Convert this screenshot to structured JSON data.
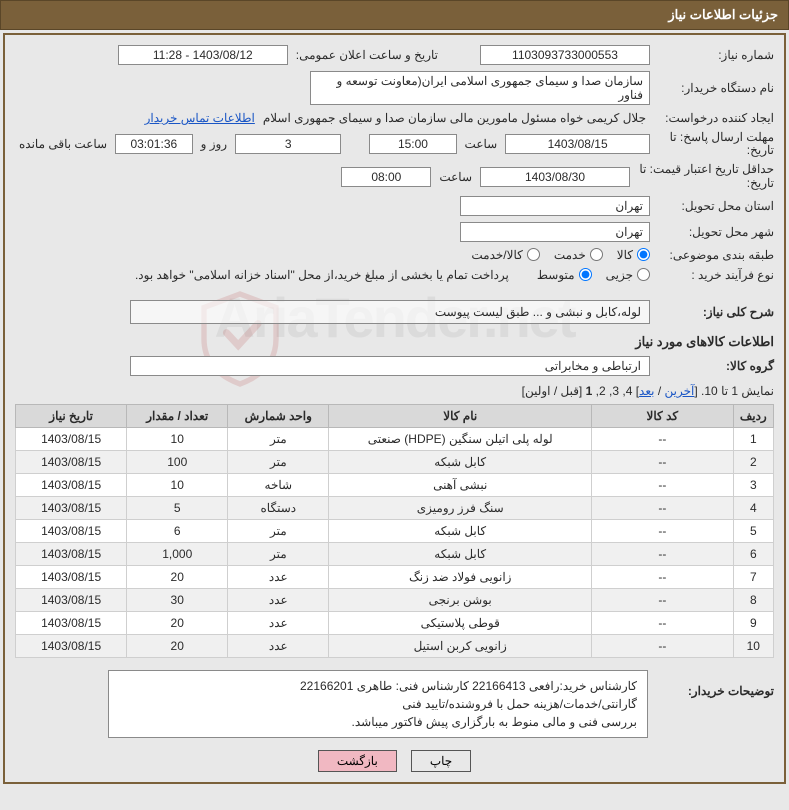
{
  "title": "جزئیات اطلاعات نیاز",
  "fields": {
    "need_no_label": "شماره نیاز:",
    "need_no": "1103093733000553",
    "announce_label": "تاریخ و ساعت اعلان عمومی:",
    "announce": "1403/08/12 - 11:28",
    "buyer_org_label": "نام دستگاه خریدار:",
    "buyer_org": "سازمان صدا و سیمای جمهوری اسلامی ایران(معاونت توسعه و فناور",
    "requester_label": "ایجاد کننده درخواست:",
    "requester": "جلال کریمی خواه مسئول مامورین مالی  سازمان صدا و سیمای جمهوری اسلام",
    "contact_link": "اطلاعات تماس خریدار",
    "deadline_label_a": "مهلت ارسال پاسخ: تا",
    "deadline_label_b": "تاریخ:",
    "deadline_date": "1403/08/15",
    "hour_label": "ساعت",
    "deadline_time": "15:00",
    "day_word": "روز و",
    "days_left": "3",
    "timer": "03:01:36",
    "remain_label": "ساعت باقی مانده",
    "validity_label_a": "حداقل تاریخ اعتبار قیمت: تا",
    "validity_label_b": "تاریخ:",
    "validity_date": "1403/08/30",
    "validity_time": "08:00",
    "province_label": "استان محل تحویل:",
    "province": "تهران",
    "city_label": "شهر محل تحویل:",
    "city": "تهران",
    "class_label": "طبقه بندی موضوعی:",
    "class_opts": {
      "a": "کالا",
      "b": "خدمت",
      "c": "کالا/خدمت"
    },
    "process_label": "نوع فرآیند خرید :",
    "process_opts": {
      "a": "جزیی",
      "b": "متوسط"
    },
    "process_note": "پرداخت تمام یا بخشی از مبلغ خرید،از محل \"اسناد خزانه اسلامی\" خواهد بود.",
    "overall_label": "شرح کلی نیاز:",
    "overall_desc": "لوله،کابل و نبشی و ... طبق لیست پیوست",
    "goods_head": "اطلاعات کالاهای مورد نیاز",
    "group_label": "گروه کالا:",
    "group_value": "ارتباطی و مخابراتی"
  },
  "pager": {
    "prefix": "نمایش 1 تا 10. [",
    "last": "آخرین",
    "sep1": " / ",
    "next": "بعد",
    "mid": "] 4, 3, 2, ",
    "curr": "1",
    "tail": " [قبل / اولین]"
  },
  "table": {
    "headers": {
      "row": "ردیف",
      "code": "کد کالا",
      "name": "نام کالا",
      "unit": "واحد شمارش",
      "qty": "تعداد / مقدار",
      "date": "تاریخ نیاز"
    },
    "rows": [
      {
        "n": "1",
        "code": "--",
        "name": "لوله پلی اتیلن سنگین (HDPE) صنعتی",
        "unit": "متر",
        "qty": "10",
        "date": "1403/08/15"
      },
      {
        "n": "2",
        "code": "--",
        "name": "کابل شبکه",
        "unit": "متر",
        "qty": "100",
        "date": "1403/08/15"
      },
      {
        "n": "3",
        "code": "--",
        "name": "نبشی آهنی",
        "unit": "شاخه",
        "qty": "10",
        "date": "1403/08/15"
      },
      {
        "n": "4",
        "code": "--",
        "name": "سنگ فرز رومیزی",
        "unit": "دستگاه",
        "qty": "5",
        "date": "1403/08/15"
      },
      {
        "n": "5",
        "code": "--",
        "name": "کابل شبکه",
        "unit": "متر",
        "qty": "6",
        "date": "1403/08/15"
      },
      {
        "n": "6",
        "code": "--",
        "name": "کابل شبکه",
        "unit": "متر",
        "qty": "1,000",
        "date": "1403/08/15"
      },
      {
        "n": "7",
        "code": "--",
        "name": "زانویی فولاد ضد زنگ",
        "unit": "عدد",
        "qty": "20",
        "date": "1403/08/15"
      },
      {
        "n": "8",
        "code": "--",
        "name": "بوشن برنجی",
        "unit": "عدد",
        "qty": "30",
        "date": "1403/08/15"
      },
      {
        "n": "9",
        "code": "--",
        "name": "قوطی پلاستیکی",
        "unit": "عدد",
        "qty": "20",
        "date": "1403/08/15"
      },
      {
        "n": "10",
        "code": "--",
        "name": "زانویی کربن استیل",
        "unit": "عدد",
        "qty": "20",
        "date": "1403/08/15"
      }
    ]
  },
  "remarks": {
    "label": "توضیحات خریدار:",
    "l1": "کارشناس خرید:رافعی 22166413   کارشناس فنی: طاهری 22166201",
    "l2": "گارانتی/خدمات/هزینه حمل با فروشنده/تایید فنی",
    "l3": "بررسی فنی و مالی منوط به بارگزاری پیش فاکتور میباشد."
  },
  "buttons": {
    "print": "چاپ",
    "back": "بازگشت"
  },
  "watermark": "AriaTender.net",
  "style": {
    "accent": "#7a603a",
    "widths": {
      "need_no": 170,
      "announce": 170,
      "date": 150,
      "time": 90,
      "days": 110,
      "timer": 80,
      "loc": 190,
      "row_col": 40,
      "code_col": 140,
      "name_col": 260,
      "unit_col": 100,
      "qty_col": 100,
      "date_col": 110
    }
  }
}
